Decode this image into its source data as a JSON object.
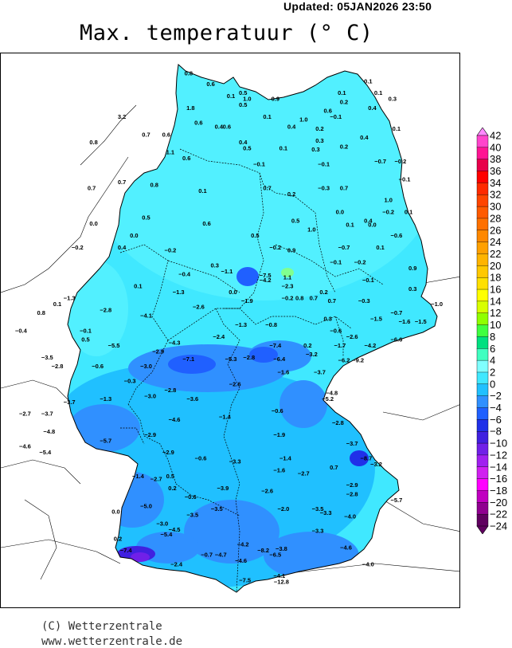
{
  "header": {
    "updated": "Updated:  05JAN2026  23:50",
    "title": "Max. temperatuur (° C)"
  },
  "footer": {
    "copyright": "(C) Wetterzentrale",
    "website": "www.wetterzentrale.de"
  },
  "legend": {
    "labels": [
      "42",
      "40",
      "38",
      "36",
      "34",
      "32",
      "30",
      "28",
      "26",
      "24",
      "22",
      "20",
      "18",
      "16",
      "14",
      "12",
      "10",
      "8",
      "6",
      "4",
      "2",
      "0",
      "−2",
      "−4",
      "−6",
      "−8",
      "−10",
      "−12",
      "−14",
      "−16",
      "−18",
      "−20",
      "−22",
      "−24"
    ],
    "colors": [
      "#ff88ff",
      "#ff44cc",
      "#ff1493",
      "#e8004a",
      "#ff0000",
      "#ff2a00",
      "#ff4500",
      "#ff5a00",
      "#ff7000",
      "#ff8800",
      "#ffa000",
      "#ffb400",
      "#ffc800",
      "#ffe000",
      "#ffff00",
      "#d8ff00",
      "#90ff00",
      "#40ff40",
      "#00e080",
      "#40ffc0",
      "#80ffff",
      "#40e8ff",
      "#20c0ff",
      "#3090ff",
      "#2060ff",
      "#2030e8",
      "#4020e0",
      "#7020e8",
      "#a020f0",
      "#d020f0",
      "#ff00ff",
      "#c000c0",
      "#900090",
      "#600060"
    ]
  },
  "chart_data": {
    "type": "map",
    "variable": "Max. temperatuur (° C)",
    "points": [
      {
        "t": "0.8",
        "lon": 8.85,
        "lat": 54.88
      },
      {
        "t": "0.6",
        "lon": 9.4,
        "lat": 54.7
      },
      {
        "t": "0.5",
        "lon": 10.2,
        "lat": 54.55
      },
      {
        "t": "0.1",
        "lon": 9.9,
        "lat": 54.5
      },
      {
        "t": "1.0",
        "lon": 10.3,
        "lat": 54.45
      },
      {
        "t": "0.9",
        "lon": 11.0,
        "lat": 54.45
      },
      {
        "t": "0.5",
        "lon": 10.2,
        "lat": 54.35
      },
      {
        "t": "1.8",
        "lon": 8.9,
        "lat": 54.3
      },
      {
        "t": "3.2",
        "lon": 7.2,
        "lat": 54.15
      },
      {
        "t": "0.1",
        "lon": 10.8,
        "lat": 54.15
      },
      {
        "t": "1.0",
        "lon": 11.7,
        "lat": 54.1
      },
      {
        "t": "0.6",
        "lon": 9.1,
        "lat": 54.05
      },
      {
        "t": "0.4",
        "lon": 9.6,
        "lat": 53.98
      },
      {
        "t": "0.6",
        "lon": 9.8,
        "lat": 53.98
      },
      {
        "t": "0.4",
        "lon": 11.4,
        "lat": 53.98
      },
      {
        "t": "0.7",
        "lon": 7.8,
        "lat": 53.85
      },
      {
        "t": "0.6",
        "lon": 8.3,
        "lat": 53.85
      },
      {
        "t": "0.4",
        "lon": 10.2,
        "lat": 53.72
      },
      {
        "t": "0.5",
        "lon": 10.3,
        "lat": 53.62
      },
      {
        "t": "0.1",
        "lon": 11.2,
        "lat": 53.62
      },
      {
        "t": "0.3",
        "lon": 12.0,
        "lat": 53.6
      },
      {
        "t": "0.8",
        "lon": 6.5,
        "lat": 53.72
      },
      {
        "t": "1.1",
        "lon": 8.4,
        "lat": 53.55
      },
      {
        "t": "0.6",
        "lon": 8.8,
        "lat": 53.45
      },
      {
        "t": "−0.1",
        "lon": 10.6,
        "lat": 53.35
      },
      {
        "t": "0.1",
        "lon": 12.65,
        "lat": 54.55
      },
      {
        "t": "0.1",
        "lon": 13.3,
        "lat": 54.75
      },
      {
        "t": "0.1",
        "lon": 13.55,
        "lat": 54.55
      },
      {
        "t": "0.3",
        "lon": 13.9,
        "lat": 54.45
      },
      {
        "t": "0.2",
        "lon": 12.7,
        "lat": 54.4
      },
      {
        "t": "0.4",
        "lon": 13.4,
        "lat": 54.3
      },
      {
        "t": "0.6",
        "lon": 12.3,
        "lat": 54.25
      },
      {
        "t": "−0.1",
        "lon": 12.5,
        "lat": 54.15
      },
      {
        "t": "0.2",
        "lon": 12.1,
        "lat": 53.95
      },
      {
        "t": "0.4",
        "lon": 13.2,
        "lat": 53.8
      },
      {
        "t": "0.3",
        "lon": 12.1,
        "lat": 53.75
      },
      {
        "t": "0.2",
        "lon": 12.7,
        "lat": 53.65
      },
      {
        "t": "0.1",
        "lon": 14.0,
        "lat": 53.95
      },
      {
        "t": "−0.1",
        "lon": 12.2,
        "lat": 53.35
      },
      {
        "t": "−0.7",
        "lon": 13.6,
        "lat": 53.4
      },
      {
        "t": "−0.2",
        "lon": 14.1,
        "lat": 53.4
      },
      {
        "t": "0.7",
        "lon": 6.45,
        "lat": 52.95
      },
      {
        "t": "0.7",
        "lon": 7.2,
        "lat": 53.05
      },
      {
        "t": "0.8",
        "lon": 8.0,
        "lat": 53.0
      },
      {
        "t": "0.1",
        "lon": 9.2,
        "lat": 52.9
      },
      {
        "t": "0.7",
        "lon": 10.8,
        "lat": 52.95
      },
      {
        "t": "0.2",
        "lon": 11.4,
        "lat": 52.85
      },
      {
        "t": "−0.3",
        "lon": 12.2,
        "lat": 52.95
      },
      {
        "t": "0.7",
        "lon": 12.7,
        "lat": 52.95
      },
      {
        "t": "−0.1",
        "lon": 14.2,
        "lat": 53.1
      },
      {
        "t": "1.0",
        "lon": 13.8,
        "lat": 52.75
      },
      {
        "t": "0.0",
        "lon": 12.6,
        "lat": 52.55
      },
      {
        "t": "−0.2",
        "lon": 13.8,
        "lat": 52.55
      },
      {
        "t": "0.1",
        "lon": 14.3,
        "lat": 52.55
      },
      {
        "t": "0.4",
        "lon": 13.3,
        "lat": 52.4
      },
      {
        "t": "0.0",
        "lon": 13.4,
        "lat": 52.33
      },
      {
        "t": "0.1",
        "lon": 12.85,
        "lat": 52.33
      },
      {
        "t": "−0.6",
        "lon": 14.0,
        "lat": 52.15
      },
      {
        "t": "0.5",
        "lon": 11.5,
        "lat": 52.4
      },
      {
        "t": "1.0",
        "lon": 11.9,
        "lat": 52.25
      },
      {
        "t": "0.5",
        "lon": 7.8,
        "lat": 52.45
      },
      {
        "t": "0.6",
        "lon": 9.3,
        "lat": 52.35
      },
      {
        "t": "0.0",
        "lon": 6.5,
        "lat": 52.35
      },
      {
        "t": "0.0",
        "lon": 7.5,
        "lat": 52.15
      },
      {
        "t": "0.5",
        "lon": 10.5,
        "lat": 52.15
      },
      {
        "t": "0.4",
        "lon": 7.2,
        "lat": 51.95
      },
      {
        "t": "−0.2",
        "lon": 6.1,
        "lat": 51.95
      },
      {
        "t": "−0.2",
        "lon": 8.4,
        "lat": 51.9
      },
      {
        "t": "−0.2",
        "lon": 11.0,
        "lat": 51.95
      },
      {
        "t": "0.9",
        "lon": 11.4,
        "lat": 51.9
      },
      {
        "t": "−0.7",
        "lon": 12.7,
        "lat": 51.95
      },
      {
        "t": "0.1",
        "lon": 13.6,
        "lat": 51.95
      },
      {
        "t": "0.3",
        "lon": 9.5,
        "lat": 51.65
      },
      {
        "t": "−1.1",
        "lon": 9.8,
        "lat": 51.55
      },
      {
        "t": "−0.4",
        "lon": 8.75,
        "lat": 51.5
      },
      {
        "t": "−0.1",
        "lon": 12.5,
        "lat": 51.7
      },
      {
        "t": "−0.2",
        "lon": 13.1,
        "lat": 51.7
      },
      {
        "t": "0.9",
        "lon": 14.4,
        "lat": 51.6
      },
      {
        "t": "−7.5",
        "lon": 10.75,
        "lat": 51.48
      },
      {
        "t": "1.1",
        "lon": 11.3,
        "lat": 51.45
      },
      {
        "t": "−4.2",
        "lon": 10.75,
        "lat": 51.4
      },
      {
        "t": "−2.3",
        "lon": 11.3,
        "lat": 51.3
      },
      {
        "t": "0.1",
        "lon": 7.6,
        "lat": 51.3
      },
      {
        "t": "−0.1",
        "lon": 13.3,
        "lat": 51.4
      },
      {
        "t": "0.3",
        "lon": 14.4,
        "lat": 51.25
      },
      {
        "t": "−1.3",
        "lon": 5.9,
        "lat": 51.1
      },
      {
        "t": "−1.3",
        "lon": 8.6,
        "lat": 51.2
      },
      {
        "t": "0.0",
        "lon": 9.95,
        "lat": 51.2
      },
      {
        "t": "−1.9",
        "lon": 10.3,
        "lat": 51.05
      },
      {
        "t": "−0.2",
        "lon": 11.3,
        "lat": 51.1
      },
      {
        "t": "0.8",
        "lon": 11.6,
        "lat": 51.1
      },
      {
        "t": "0.7",
        "lon": 11.95,
        "lat": 51.1
      },
      {
        "t": "0.2",
        "lon": 12.2,
        "lat": 51.2
      },
      {
        "t": "0.7",
        "lon": 12.4,
        "lat": 51.05
      },
      {
        "t": "−0.3",
        "lon": 13.2,
        "lat": 51.05
      },
      {
        "t": "−1.0",
        "lon": 15.0,
        "lat": 51.0
      },
      {
        "t": "0.1",
        "lon": 5.6,
        "lat": 51.0
      },
      {
        "t": "−2.8",
        "lon": 6.8,
        "lat": 50.9
      },
      {
        "t": "−2.6",
        "lon": 9.1,
        "lat": 50.95
      },
      {
        "t": "0.8",
        "lon": 5.2,
        "lat": 50.85
      },
      {
        "t": "−4.1",
        "lon": 7.8,
        "lat": 50.8
      },
      {
        "t": "−0.7",
        "lon": 14.0,
        "lat": 50.85
      },
      {
        "t": "−1.5",
        "lon": 13.5,
        "lat": 50.75
      },
      {
        "t": "−1.6",
        "lon": 14.2,
        "lat": 50.7
      },
      {
        "t": "0.3",
        "lon": 12.3,
        "lat": 50.75
      },
      {
        "t": "−1.5",
        "lon": 14.6,
        "lat": 50.7
      },
      {
        "t": "−1.3",
        "lon": 10.15,
        "lat": 50.65
      },
      {
        "t": "−0.8",
        "lon": 10.9,
        "lat": 50.65
      },
      {
        "t": "−0.6",
        "lon": 12.5,
        "lat": 50.55
      },
      {
        "t": "−2.6",
        "lon": 12.9,
        "lat": 50.45
      },
      {
        "t": "−0.4",
        "lon": 4.7,
        "lat": 50.55
      },
      {
        "t": "−0.1",
        "lon": 6.3,
        "lat": 50.55
      },
      {
        "t": "0.5",
        "lon": 6.3,
        "lat": 50.4
      },
      {
        "t": "−2.4",
        "lon": 9.6,
        "lat": 50.45
      },
      {
        "t": "−4.3",
        "lon": 8.5,
        "lat": 50.35
      },
      {
        "t": "−5.5",
        "lon": 7.0,
        "lat": 50.3
      },
      {
        "t": "−7.4",
        "lon": 11.0,
        "lat": 50.3
      },
      {
        "t": "0.2",
        "lon": 11.8,
        "lat": 50.3
      },
      {
        "t": "−1.7",
        "lon": 12.6,
        "lat": 50.3
      },
      {
        "t": "−4.2",
        "lon": 13.35,
        "lat": 50.3
      },
      {
        "t": "−6.6",
        "lon": 14.0,
        "lat": 50.4
      },
      {
        "t": "−2.9",
        "lon": 8.1,
        "lat": 50.2
      },
      {
        "t": "−3.2",
        "lon": 11.9,
        "lat": 50.15
      },
      {
        "t": "−7.1",
        "lon": 8.85,
        "lat": 50.07
      },
      {
        "t": "−5.3",
        "lon": 9.9,
        "lat": 50.07
      },
      {
        "t": "−2.8",
        "lon": 10.35,
        "lat": 50.1
      },
      {
        "t": "−6.4",
        "lon": 11.1,
        "lat": 50.07
      },
      {
        "t": "−6.2",
        "lon": 12.7,
        "lat": 50.05
      },
      {
        "t": "−9.2",
        "lon": 13.05,
        "lat": 50.05
      },
      {
        "t": "−3.5",
        "lon": 5.35,
        "lat": 50.1
      },
      {
        "t": "−0.6",
        "lon": 6.6,
        "lat": 49.95
      },
      {
        "t": "−2.8",
        "lon": 5.6,
        "lat": 49.95
      },
      {
        "t": "−3.0",
        "lon": 7.8,
        "lat": 49.95
      },
      {
        "t": "−3.7",
        "lon": 12.1,
        "lat": 49.85
      },
      {
        "t": "−1.6",
        "lon": 11.2,
        "lat": 49.85
      },
      {
        "t": "−0.3",
        "lon": 7.4,
        "lat": 49.7
      },
      {
        "t": "−2.6",
        "lon": 10.0,
        "lat": 49.65
      },
      {
        "t": "−2.8",
        "lon": 8.4,
        "lat": 49.55
      },
      {
        "t": "−3.0",
        "lon": 7.9,
        "lat": 49.45
      },
      {
        "t": "−4.8",
        "lon": 12.4,
        "lat": 49.5
      },
      {
        "t": "−5.2",
        "lon": 12.3,
        "lat": 49.4
      },
      {
        "t": "−3.6",
        "lon": 8.95,
        "lat": 49.4
      },
      {
        "t": "−1.3",
        "lon": 6.8,
        "lat": 49.4
      },
      {
        "t": "−3.7",
        "lon": 5.9,
        "lat": 49.35
      },
      {
        "t": "−2.7",
        "lon": 4.8,
        "lat": 49.15
      },
      {
        "t": "−3.7",
        "lon": 5.35,
        "lat": 49.15
      },
      {
        "t": "−0.6",
        "lon": 11.05,
        "lat": 49.2
      },
      {
        "t": "−4.6",
        "lon": 8.5,
        "lat": 49.05
      },
      {
        "t": "−1.4",
        "lon": 9.75,
        "lat": 49.1
      },
      {
        "t": "−2.8",
        "lon": 12.55,
        "lat": 49.0
      },
      {
        "t": "−4.8",
        "lon": 5.4,
        "lat": 48.85
      },
      {
        "t": "−2.9",
        "lon": 7.9,
        "lat": 48.8
      },
      {
        "t": "−5.7",
        "lon": 6.8,
        "lat": 48.7
      },
      {
        "t": "−1.9",
        "lon": 11.1,
        "lat": 48.8
      },
      {
        "t": "−3.7",
        "lon": 12.9,
        "lat": 48.65
      },
      {
        "t": "−4.6",
        "lon": 4.8,
        "lat": 48.6
      },
      {
        "t": "−5.4",
        "lon": 5.3,
        "lat": 48.5
      },
      {
        "t": "−2.9",
        "lon": 8.35,
        "lat": 48.5
      },
      {
        "t": "−0.6",
        "lon": 9.15,
        "lat": 48.4
      },
      {
        "t": "−3.3",
        "lon": 10.0,
        "lat": 48.35
      },
      {
        "t": "−1.4",
        "lon": 11.25,
        "lat": 48.4
      },
      {
        "t": "−8.7",
        "lon": 13.25,
        "lat": 48.4
      },
      {
        "t": "−3.2",
        "lon": 13.5,
        "lat": 48.3
      },
      {
        "t": "0.7",
        "lon": 12.45,
        "lat": 48.25
      },
      {
        "t": "−1.6",
        "lon": 11.1,
        "lat": 48.2
      },
      {
        "t": "−2.7",
        "lon": 11.7,
        "lat": 48.15
      },
      {
        "t": "−1.4",
        "lon": 7.6,
        "lat": 48.1
      },
      {
        "t": "−2.7",
        "lon": 8.05,
        "lat": 48.05
      },
      {
        "t": "0.5",
        "lon": 8.4,
        "lat": 48.1
      },
      {
        "t": "−2.9",
        "lon": 12.9,
        "lat": 47.95
      },
      {
        "t": "0.2",
        "lon": 8.45,
        "lat": 47.9
      },
      {
        "t": "−3.9",
        "lon": 9.7,
        "lat": 47.9
      },
      {
        "t": "−2.6",
        "lon": 10.8,
        "lat": 47.85
      },
      {
        "t": "−2.8",
        "lon": 12.9,
        "lat": 47.8
      },
      {
        "t": "−0.6",
        "lon": 8.9,
        "lat": 47.75
      },
      {
        "t": "−5.7",
        "lon": 14.0,
        "lat": 47.7
      },
      {
        "t": "−5.0",
        "lon": 7.8,
        "lat": 47.6
      },
      {
        "t": "−3.5",
        "lon": 9.55,
        "lat": 47.55
      },
      {
        "t": "−2.0",
        "lon": 11.2,
        "lat": 47.55
      },
      {
        "t": "−3.5",
        "lon": 12.05,
        "lat": 47.55
      },
      {
        "t": "−3.3",
        "lon": 12.25,
        "lat": 47.48
      },
      {
        "t": "0.0",
        "lon": 7.05,
        "lat": 47.5
      },
      {
        "t": "−3.5",
        "lon": 8.95,
        "lat": 47.45
      },
      {
        "t": "−4.0",
        "lon": 12.85,
        "lat": 47.42
      },
      {
        "t": "−3.0",
        "lon": 8.2,
        "lat": 47.3
      },
      {
        "t": "−4.5",
        "lon": 8.5,
        "lat": 47.2
      },
      {
        "t": "−5.4",
        "lon": 8.3,
        "lat": 47.12
      },
      {
        "t": "−3.3",
        "lon": 12.05,
        "lat": 47.18
      },
      {
        "t": "0.2",
        "lon": 7.1,
        "lat": 47.05
      },
      {
        "t": "−4.6",
        "lon": 12.75,
        "lat": 46.9
      },
      {
        "t": "−7.4",
        "lon": 7.3,
        "lat": 46.85
      },
      {
        "t": "−4.2",
        "lon": 10.2,
        "lat": 46.95
      },
      {
        "t": "−8.2",
        "lon": 10.7,
        "lat": 46.85
      },
      {
        "t": "−3.8",
        "lon": 11.15,
        "lat": 46.88
      },
      {
        "t": "−6.5",
        "lon": 11.0,
        "lat": 46.78
      },
      {
        "t": "−0.7",
        "lon": 9.3,
        "lat": 46.78
      },
      {
        "t": "−4.7",
        "lon": 9.65,
        "lat": 46.78
      },
      {
        "t": "−4.6",
        "lon": 10.15,
        "lat": 46.68
      },
      {
        "t": "−2.4",
        "lon": 8.55,
        "lat": 46.62
      },
      {
        "t": "−4.0",
        "lon": 13.3,
        "lat": 46.62
      },
      {
        "t": "−4.1",
        "lon": 11.1,
        "lat": 46.42
      },
      {
        "t": "−7.5",
        "lon": 10.25,
        "lat": 46.35
      },
      {
        "t": "−12.8",
        "lon": 11.15,
        "lat": 46.32
      }
    ]
  }
}
